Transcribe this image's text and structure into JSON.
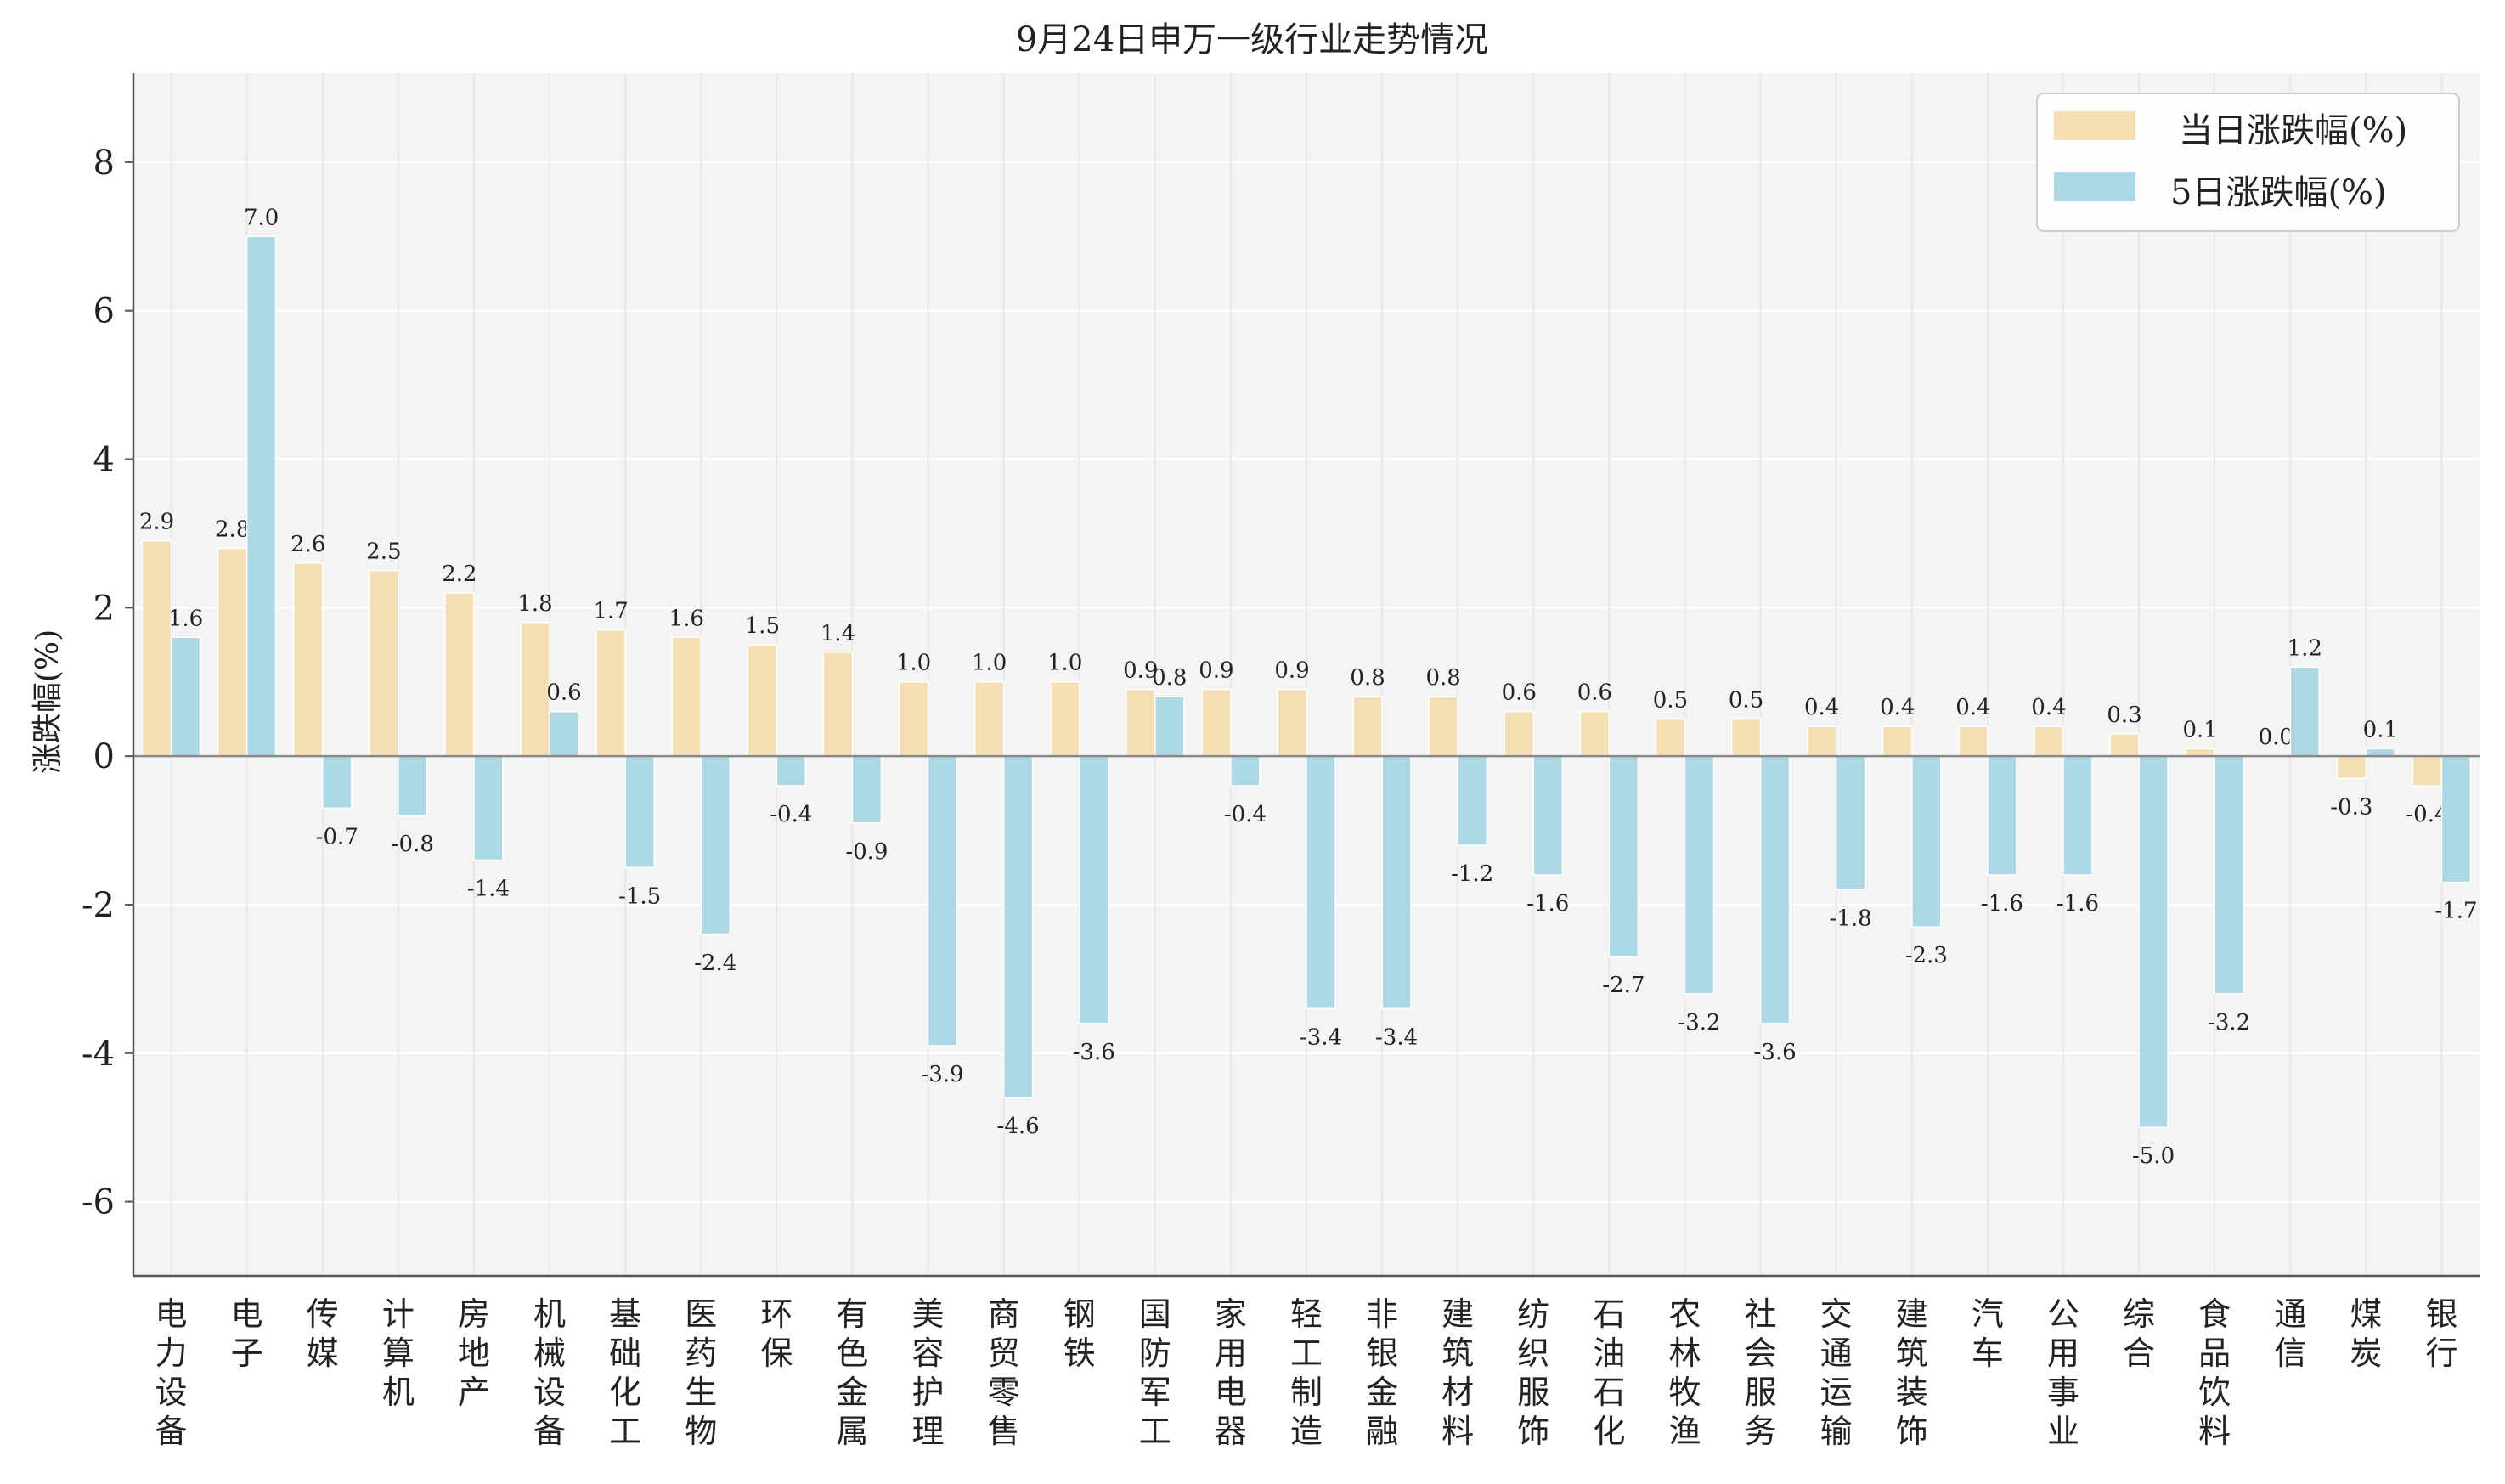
{
  "chart_data": {
    "type": "bar",
    "title": "9月24日申万一级行业走势情况",
    "xlabel": "",
    "ylabel": "涨跌幅(%)",
    "ylim": [
      -7,
      9.2
    ],
    "yticks": [
      -6,
      -4,
      -2,
      0,
      2,
      4,
      6,
      8
    ],
    "grid": true,
    "legend_position": "top-right",
    "categories": [
      "电力设备",
      "电子",
      "传媒",
      "计算机",
      "房地产",
      "机械设备",
      "基础化工",
      "医药生物",
      "环保",
      "有色金属",
      "美容护理",
      "商贸零售",
      "钢铁",
      "国防军工",
      "家用电器",
      "轻工制造",
      "非银金融",
      "建筑材料",
      "纺织服饰",
      "石油石化",
      "农林牧渔",
      "社会服务",
      "交通运输",
      "建筑装饰",
      "汽车",
      "公用事业",
      "综合",
      "食品饮料",
      "通信",
      "煤炭",
      "银行"
    ],
    "series": [
      {
        "name": "当日涨跌幅(%)",
        "color": "#f5deb3",
        "values": [
          2.9,
          2.8,
          2.6,
          2.5,
          2.2,
          1.8,
          1.7,
          1.6,
          1.5,
          1.4,
          1.0,
          1.0,
          1.0,
          0.9,
          0.9,
          0.9,
          0.8,
          0.8,
          0.6,
          0.6,
          0.5,
          0.5,
          0.4,
          0.4,
          0.4,
          0.4,
          0.3,
          0.1,
          0.0,
          -0.3,
          -0.4
        ],
        "labels": [
          "2.9",
          "2.8",
          "2.6",
          "2.5",
          "2.2",
          "1.8",
          "1.7",
          "1.6",
          "1.5",
          "1.4",
          "1.0",
          "1.0",
          "1.0",
          "0.9",
          "0.9",
          "0.9",
          "0.8",
          "0.8",
          "0.6",
          "0.6",
          "0.5",
          "0.5",
          "0.4",
          "0.4",
          "0.4",
          "0.4",
          "0.3",
          "0.1",
          "0.0",
          "-0.3",
          "-0.4"
        ]
      },
      {
        "name": "5日涨跌幅(%)",
        "color": "#add8e6",
        "values": [
          1.6,
          7.0,
          -0.7,
          -0.8,
          -1.4,
          0.6,
          -1.5,
          -2.4,
          -0.4,
          -0.9,
          -3.9,
          -4.6,
          -3.6,
          0.8,
          -0.4,
          -3.4,
          -3.4,
          -1.2,
          -1.6,
          -2.7,
          -3.2,
          -3.6,
          -1.8,
          -2.3,
          -1.6,
          -1.6,
          -5.0,
          -3.2,
          1.2,
          0.1,
          -1.7
        ],
        "labels": [
          "1.6",
          "7.0",
          "-0.7",
          "-0.8",
          "-1.4",
          "0.6",
          "-1.5",
          "-2.4",
          "-0.4",
          "-0.9",
          "-3.9",
          "-4.6",
          "-3.6",
          "0.8",
          "-0.4",
          "-3.4",
          "-3.4",
          "-1.2",
          "-1.6",
          "-2.7",
          "-3.2",
          "-3.6",
          "-1.8",
          "-2.3",
          "-1.6",
          "-1.6",
          "-5.0",
          "-3.2",
          "1.2",
          "0.1",
          "-1.7"
        ]
      }
    ]
  }
}
